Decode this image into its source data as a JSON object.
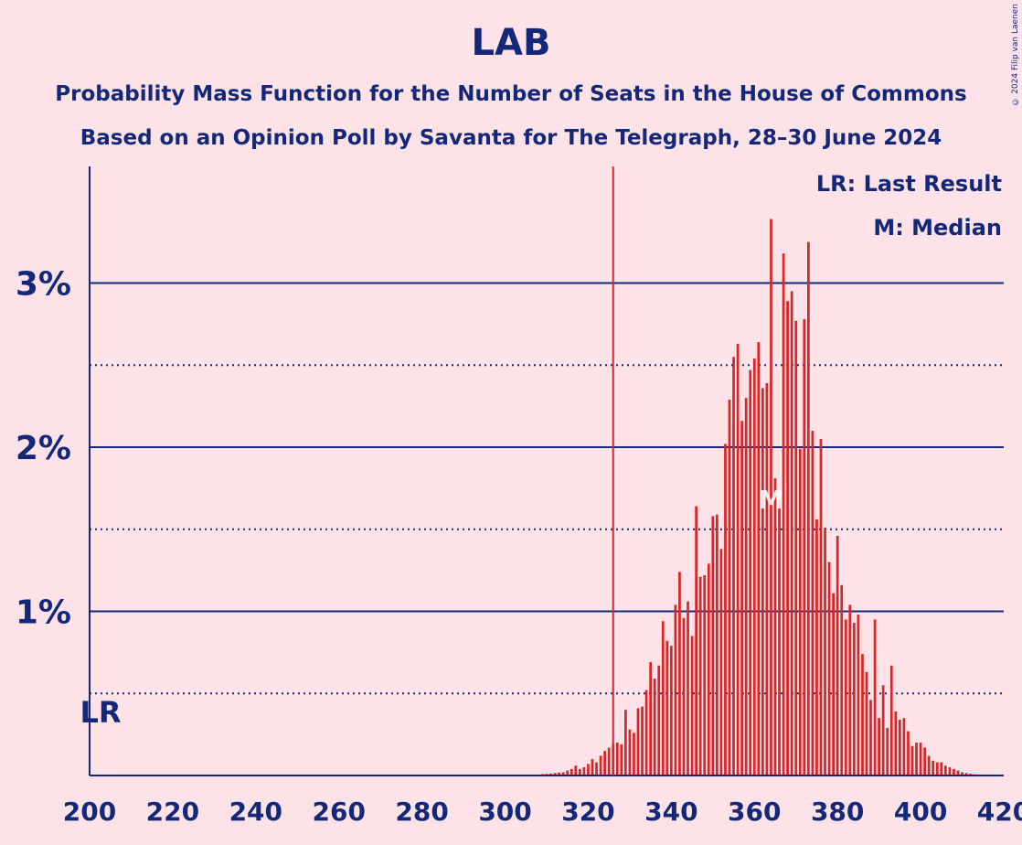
{
  "colors": {
    "background": "#FDE3E8",
    "text": "#14287A",
    "bar": "#D62728",
    "last_result_line": "#D62728",
    "median_label": "#FFFFFF"
  },
  "credit": "© 2024 Filip van Laenen",
  "chart_data": {
    "type": "bar",
    "title": "LAB",
    "subtitle": "Probability Mass Function for the Number of Seats in the House of Commons",
    "subtitle2": "Based on an Opinion Poll by Savanta for The Telegraph, 28–30 June 2024",
    "xlim": [
      200,
      420
    ],
    "ylim": [
      0,
      3.7
    ],
    "x_ticks": [
      200,
      220,
      240,
      260,
      280,
      300,
      320,
      340,
      360,
      380,
      400,
      420
    ],
    "y_ticks_major": [
      1,
      2,
      3
    ],
    "y_tick_labels": [
      "1%",
      "2%",
      "3%"
    ],
    "y_ticks_minor": [
      0.5,
      1.5,
      2.5
    ],
    "legend": [
      "LR: Last Result",
      "M: Median"
    ],
    "last_result": 326,
    "last_result_label": "LR",
    "median": 364,
    "median_label": "M",
    "x": [
      300,
      301,
      302,
      303,
      304,
      305,
      306,
      307,
      308,
      309,
      310,
      311,
      312,
      313,
      314,
      315,
      316,
      317,
      318,
      319,
      320,
      321,
      322,
      323,
      324,
      325,
      326,
      327,
      328,
      329,
      330,
      331,
      332,
      333,
      334,
      335,
      336,
      337,
      338,
      339,
      340,
      341,
      342,
      343,
      344,
      345,
      346,
      347,
      348,
      349,
      350,
      351,
      352,
      353,
      354,
      355,
      356,
      357,
      358,
      359,
      360,
      361,
      362,
      363,
      364,
      365,
      366,
      367,
      368,
      369,
      370,
      371,
      372,
      373,
      374,
      375,
      376,
      377,
      378,
      379,
      380,
      381,
      382,
      383,
      384,
      385,
      386,
      387,
      388,
      389,
      390,
      391,
      392,
      393,
      394,
      395,
      396,
      397,
      398,
      399,
      400,
      401,
      402,
      403,
      404,
      405,
      406,
      407,
      408,
      409,
      410,
      411,
      412,
      413,
      414,
      415
    ],
    "values": [
      0.001,
      0.001,
      0.002,
      0.002,
      0.003,
      0.003,
      0.004,
      0.005,
      0.006,
      0.008,
      0.01,
      0.012,
      0.015,
      0.018,
      0.02,
      0.03,
      0.04,
      0.06,
      0.04,
      0.05,
      0.07,
      0.1,
      0.08,
      0.12,
      0.15,
      0.17,
      0.19,
      0.2,
      0.19,
      0.4,
      0.28,
      0.26,
      0.41,
      0.42,
      0.52,
      0.69,
      0.59,
      0.67,
      0.94,
      0.82,
      0.79,
      1.04,
      1.24,
      0.96,
      1.06,
      0.85,
      1.64,
      1.21,
      1.22,
      1.29,
      1.58,
      1.59,
      1.38,
      2.02,
      2.29,
      2.55,
      2.63,
      2.16,
      2.3,
      2.47,
      2.54,
      2.64,
      2.36,
      2.39,
      3.39,
      1.81,
      1.68,
      3.18,
      2.89,
      2.95,
      2.77,
      1.99,
      2.78,
      3.25,
      2.1,
      1.56,
      2.05,
      1.51,
      1.3,
      1.11,
      1.46,
      1.16,
      0.95,
      1.04,
      0.93,
      0.98,
      0.74,
      0.63,
      0.46,
      0.95,
      0.35,
      0.55,
      0.29,
      0.67,
      0.39,
      0.34,
      0.35,
      0.27,
      0.18,
      0.2,
      0.2,
      0.17,
      0.12,
      0.09,
      0.08,
      0.08,
      0.06,
      0.05,
      0.04,
      0.03,
      0.02,
      0.015,
      0.01,
      0.007,
      0.005,
      0.003
    ]
  }
}
